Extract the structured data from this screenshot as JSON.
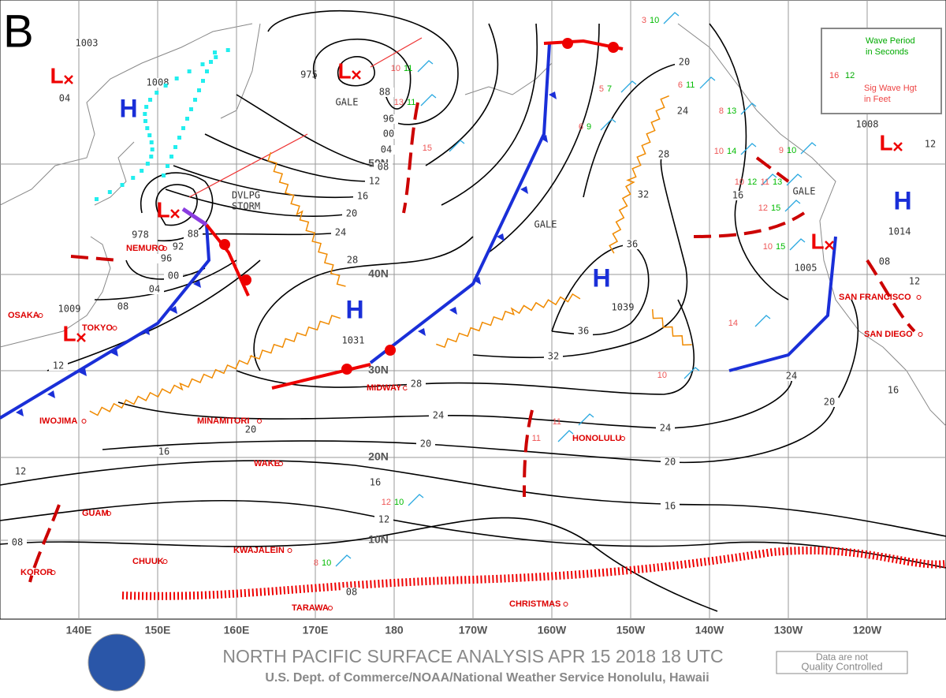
{
  "panel_label": "B",
  "title": "NORTH PACIFIC SURFACE ANALYSIS APR 15 2018 18 UTC",
  "subtitle": "U.S. Dept. of Commerce/NOAA/National Weather Service Honolulu, Hawaii",
  "quality_note": [
    "Data are not",
    "Quality Controlled"
  ],
  "legend": {
    "wave_period": [
      "Wave Period",
      "in Seconds"
    ],
    "wave_height": [
      "Sig Wave Hgt",
      "in Feet"
    ],
    "sample_period": "12",
    "sample_height": "16"
  },
  "longitudes": [
    "140E",
    "150E",
    "160E",
    "170E",
    "180",
    "170W",
    "160W",
    "150W",
    "140W",
    "130W",
    "120W"
  ],
  "latitudes": [
    "10N",
    "20N",
    "30N",
    "40N",
    "50N"
  ],
  "places": [
    "OSAKA",
    "TOKYO",
    "NEMURO",
    "IWOJIMA",
    "MINAMITORI",
    "WAKE",
    "GUAM",
    "CHUUK",
    "KWAJALEIN",
    "KOROR",
    "TARAWA",
    "MIDWAY",
    "HONOLULU",
    "CHRISTMAS",
    "SAN FRANCISCO",
    "SAN DIEGO"
  ],
  "highs": [
    {
      "symbol": "H",
      "pressure": null
    },
    {
      "symbol": "H",
      "pressure": "1031"
    },
    {
      "symbol": "H",
      "pressure": "1039"
    },
    {
      "symbol": "H",
      "pressure": "1014"
    }
  ],
  "lows": [
    {
      "symbol": "L",
      "pressure": "04"
    },
    {
      "symbol": "L",
      "pressure": "975"
    },
    {
      "symbol": "L",
      "pressure": "978"
    },
    {
      "symbol": "L",
      "pressure": "1009"
    },
    {
      "symbol": "L",
      "pressure": "1008"
    },
    {
      "symbol": "L",
      "pressure": "1005"
    }
  ],
  "annotations": [
    "GALE",
    "DVLPG STORM",
    "GALE",
    "GALE"
  ],
  "isobar_labels": [
    "1003",
    "1008",
    "88",
    "96",
    "00",
    "04",
    "08",
    "12",
    "16",
    "20",
    "24",
    "28",
    "32",
    "36",
    "36",
    "32",
    "28",
    "24",
    "20",
    "28",
    "24",
    "20",
    "16",
    "12",
    "08",
    "20",
    "16",
    "12",
    "08",
    "12",
    "08",
    "04",
    "00",
    "96",
    "92",
    "88",
    "24",
    "20",
    "16",
    "24",
    "20",
    "16",
    "12",
    "08",
    "16",
    "12"
  ],
  "wave_obs": [
    {
      "height": "10",
      "period": "11"
    },
    {
      "height": "13",
      "period": "11"
    },
    {
      "height": "15",
      "period": null
    },
    {
      "height": "6",
      "period": "9"
    },
    {
      "height": "5",
      "period": "7"
    },
    {
      "height": "3",
      "period": "10"
    },
    {
      "height": "6",
      "period": "11"
    },
    {
      "height": "8",
      "period": "13"
    },
    {
      "height": "10",
      "period": "14"
    },
    {
      "height": "10",
      "period": "12"
    },
    {
      "height": "11",
      "period": "13"
    },
    {
      "height": "9",
      "period": "10"
    },
    {
      "height": "12",
      "period": "15"
    },
    {
      "height": "12",
      "period": "10"
    },
    {
      "height": "8",
      "period": "10"
    },
    {
      "height": "10",
      "period": "15"
    },
    {
      "height": "11",
      "period": null
    },
    {
      "height": "11",
      "period": null
    },
    {
      "height": "14",
      "period": null
    },
    {
      "height": "10",
      "period": null
    }
  ]
}
